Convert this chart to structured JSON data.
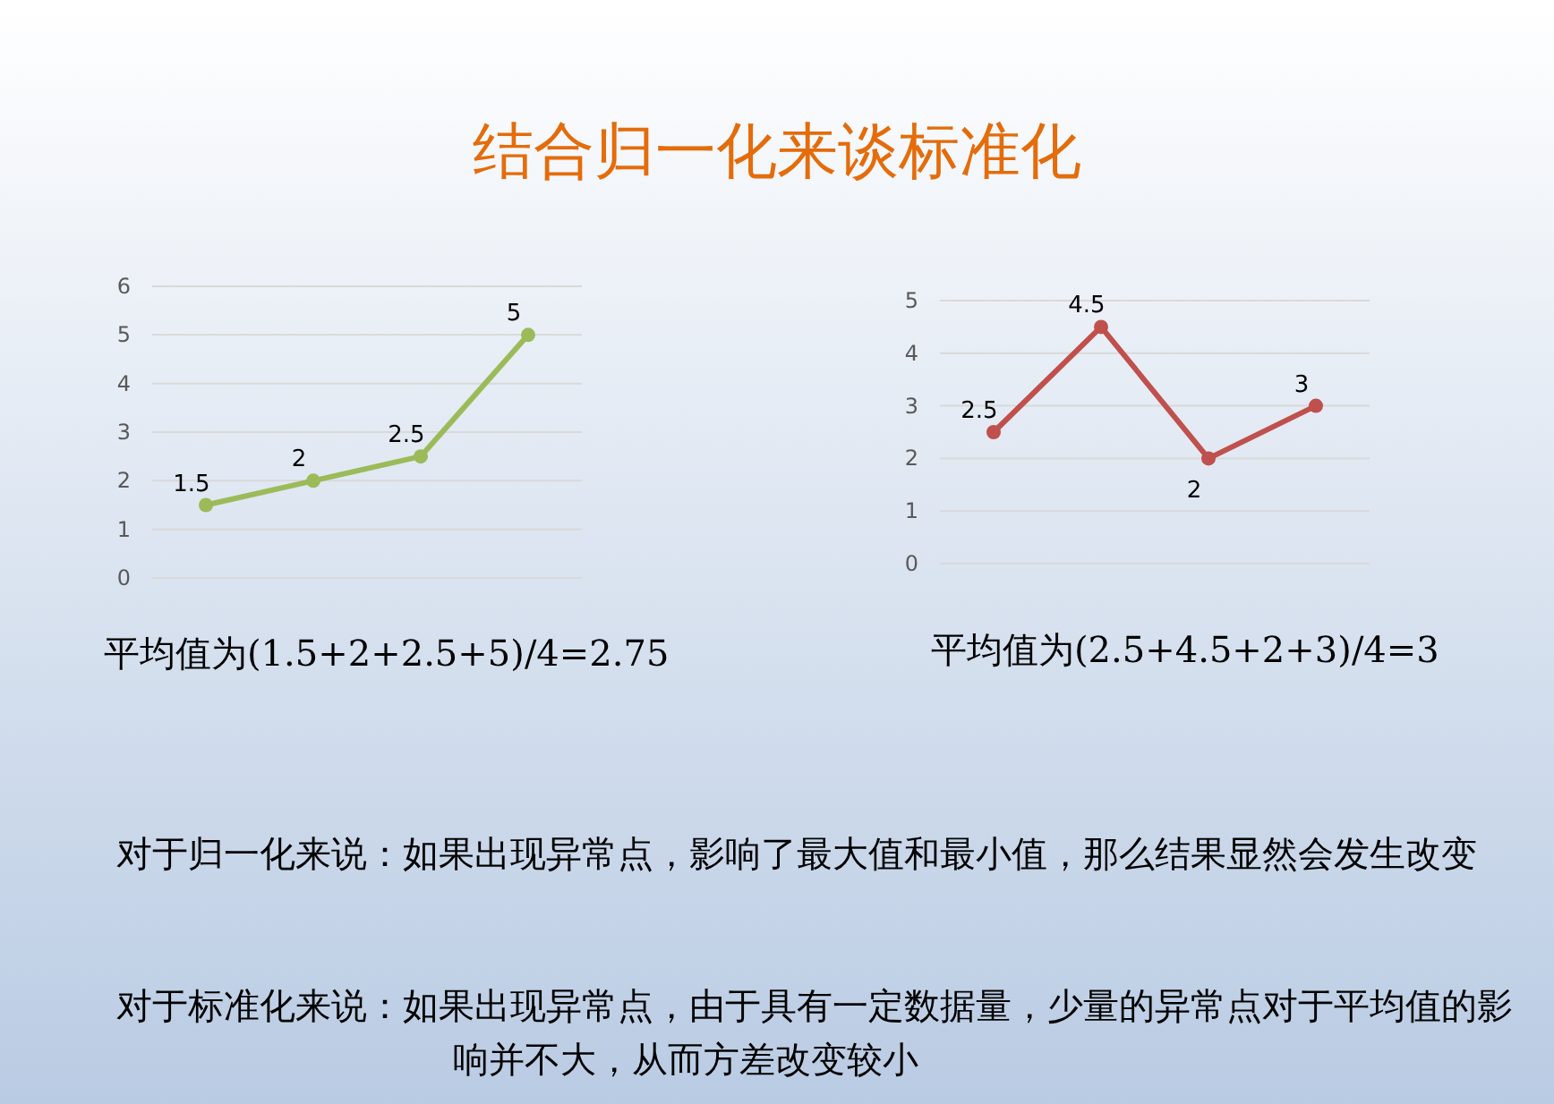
{
  "chart_data": [
    {
      "type": "line",
      "title": "结合归一化来谈标准化",
      "categories": [
        null,
        null,
        null,
        null
      ],
      "values": [
        1.5,
        2,
        2.5,
        5
      ],
      "color": "#9bbb59",
      "marker": "circle",
      "ylim": [
        0,
        6
      ],
      "yticks": [
        0,
        1,
        2,
        3,
        4,
        5,
        6
      ],
      "grid": "y",
      "data_labels": true,
      "annotations": [
        "平均值为(1.5+2+2.5+5)/4=2.75",
        "对于归一化来说：如果出现异常点，影响了最大值和最小值，那么结果显然会发生改变",
        "对于标准化来说：如果出现异常点，由于具有一定数据量，少量的异常点对于平均值的影响并不大，从而方差改变较小"
      ]
    },
    {
      "type": "line",
      "categories": [
        null,
        null,
        null,
        null
      ],
      "values": [
        2.5,
        4.5,
        2,
        3
      ],
      "color": "#c0504d",
      "marker": "circle",
      "ylim": [
        0,
        5
      ],
      "yticks": [
        0,
        1,
        2,
        3,
        4,
        5
      ],
      "grid": "y",
      "data_labels": true,
      "annotations": [
        "平均值为(2.5+4.5+2+3)/4=3"
      ]
    }
  ]
}
